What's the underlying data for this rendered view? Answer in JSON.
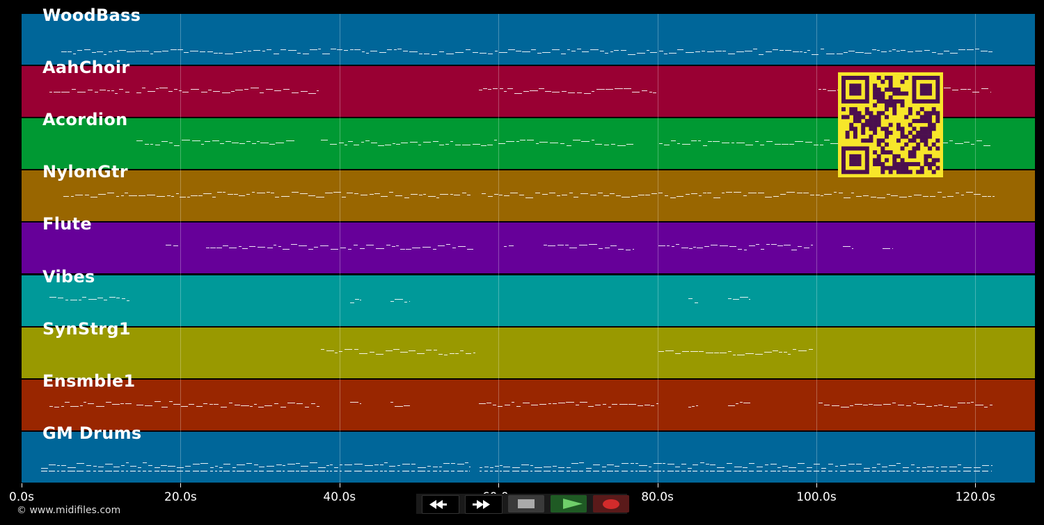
{
  "timeline": {
    "max_seconds": 127.5,
    "ticks": [
      {
        "label": "0.0s",
        "seconds": 0
      },
      {
        "label": "20.0s",
        "seconds": 20
      },
      {
        "label": "40.0s",
        "seconds": 40
      },
      {
        "label": "60.0s",
        "seconds": 60
      },
      {
        "label": "80.0s",
        "seconds": 80
      },
      {
        "label": "100.0s",
        "seconds": 100
      },
      {
        "label": "120.0s",
        "seconds": 120
      }
    ]
  },
  "tracks": [
    {
      "name": "WoodBass",
      "color": "#006699"
    },
    {
      "name": "AahChoir",
      "color": "#990033"
    },
    {
      "name": "Acordion",
      "color": "#009933"
    },
    {
      "name": "NylonGtr",
      "color": "#996600"
    },
    {
      "name": "Flute",
      "color": "#660099"
    },
    {
      "name": "Vibes",
      "color": "#009999"
    },
    {
      "name": "SynStrg1",
      "color": "#999900"
    },
    {
      "name": "Ensmble1",
      "color": "#992600"
    },
    {
      "name": "GM Drums",
      "color": "#006699"
    }
  ],
  "transport": {
    "rewind_icon": "rewind-icon",
    "forward_icon": "fast-forward-icon",
    "stop_icon": "stop-icon",
    "play_icon": "play-icon",
    "record_icon": "record-icon"
  },
  "footer": {
    "copyright": "© www.midifiles.com"
  }
}
